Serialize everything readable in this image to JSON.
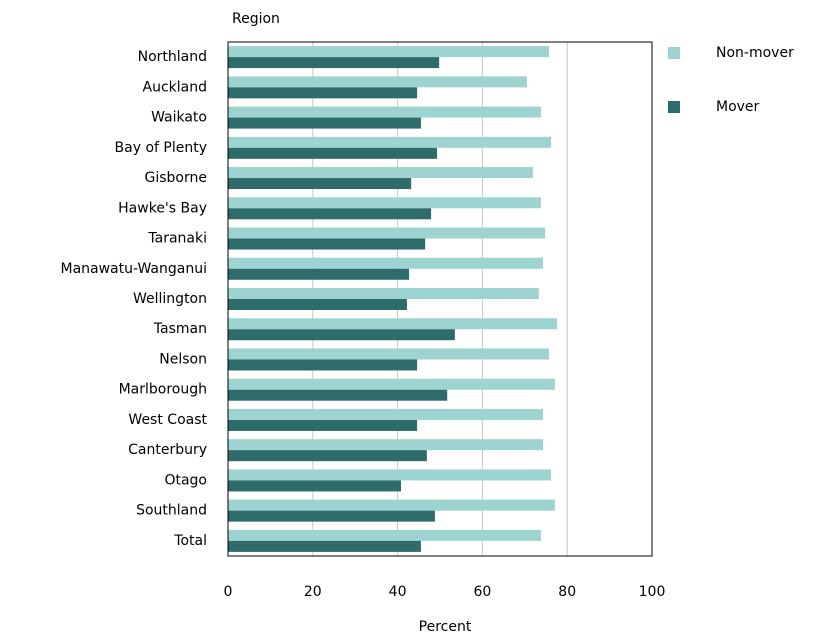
{
  "chart_data": {
    "type": "bar",
    "orientation": "horizontal",
    "y_axis_title": "Region",
    "x_axis_title": "Percent",
    "categories": [
      "Northland",
      "Auckland",
      "Waikato",
      "Bay of Plenty",
      "Gisborne",
      "Hawke's Bay",
      "Taranaki",
      "Manawatu-Wanganui",
      "Wellington",
      "Tasman",
      "Nelson",
      "Marlborough",
      "West Coast",
      "Canterbury",
      "Otago",
      "Southland",
      "Total"
    ],
    "series": [
      {
        "name": "Non-mover",
        "color": "#9dd3d0",
        "values": [
          75.7,
          70.5,
          73.8,
          76.2,
          71.9,
          73.8,
          74.8,
          74.3,
          73.3,
          77.6,
          75.7,
          77.1,
          74.3,
          74.3,
          76.2,
          77.1,
          73.8
        ]
      },
      {
        "name": "Mover",
        "color": "#2e6b6b",
        "values": [
          49.8,
          44.6,
          45.5,
          49.3,
          43.2,
          47.9,
          46.5,
          42.7,
          42.2,
          53.5,
          44.6,
          51.7,
          44.6,
          46.9,
          40.8,
          48.8,
          45.5
        ]
      }
    ],
    "xlim": [
      0,
      100
    ],
    "xticks": [
      0,
      20,
      40,
      60,
      80,
      100
    ],
    "grid": true,
    "legend": "right"
  }
}
